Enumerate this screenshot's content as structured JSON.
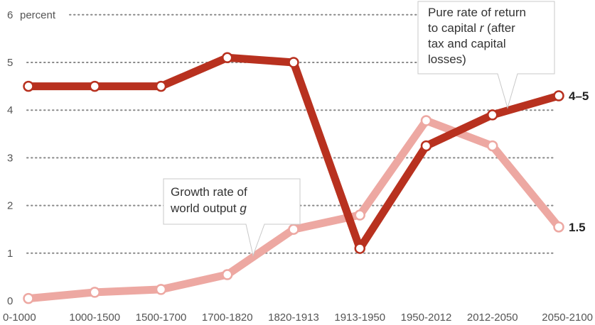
{
  "chart_data": {
    "type": "line",
    "title": "",
    "xlabel": "",
    "ylabel": "percent",
    "ylim": [
      0,
      6
    ],
    "yticks": [
      "0",
      "1",
      "2",
      "3",
      "4",
      "5",
      "6"
    ],
    "grid": "horizontal dotted",
    "categories": [
      "0-1000",
      "1000-1500",
      "1500-1700",
      "1700-1820",
      "1820-1913",
      "1913-1950",
      "1950-2012",
      "2012-2050",
      "2050-2100"
    ],
    "series": [
      {
        "name": "Pure rate of return to capital r (after tax and capital losses)",
        "color": "#b8311f",
        "values": [
          4.5,
          4.5,
          4.5,
          5.1,
          5.0,
          1.1,
          3.25,
          3.9,
          4.3
        ],
        "end_label": "4–5"
      },
      {
        "name": "Growth rate of world output g",
        "color": "#eda8a2",
        "values": [
          0.05,
          0.18,
          0.24,
          0.55,
          1.5,
          1.8,
          3.78,
          3.25,
          1.55
        ],
        "end_label": "1.5"
      }
    ]
  },
  "callouts": {
    "r": {
      "lines": [
        "Pure rate of return",
        "to capital ",
        "tax and capital",
        "losses)"
      ],
      "var": "r",
      "after_var": " (after"
    },
    "g": {
      "lines": [
        "Growth rate of",
        "world output "
      ],
      "var": "g"
    }
  }
}
